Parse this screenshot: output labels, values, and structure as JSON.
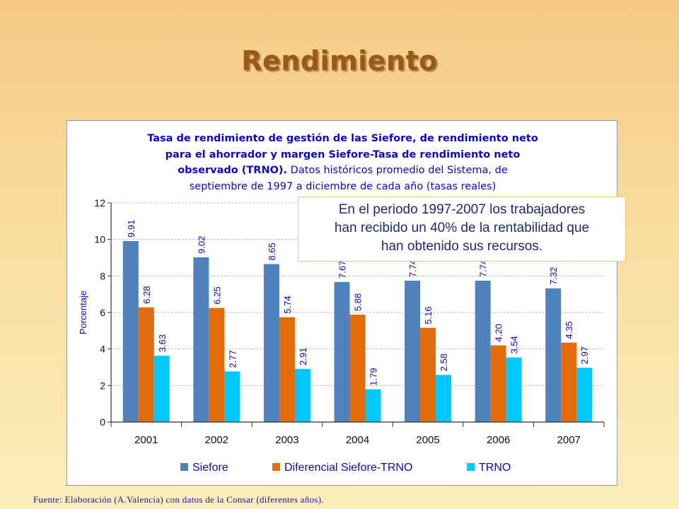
{
  "slide": {
    "title": "Rendimiento",
    "source_note": "Fuente: Elaboración (A.Valencia) con datos de la Consar (diferentes años)."
  },
  "callout": {
    "text_line1": "En el periodo 1997-2007 los trabajadores",
    "text_line2": "han recibido un 40% de la rentabilidad que",
    "text_line3": "han obtenido sus recursos."
  },
  "chart_data": {
    "type": "bar",
    "title_line1": "Tasa de rendimiento de gestión de las Siefore, de rendimiento neto",
    "title_line2": "para el ahorrador y margen Siefore-Tasa de rendimiento neto",
    "title_line3_bold": "observado (TRNO).",
    "title_line3_rest": " Datos históricos promedio del Sistema, de",
    "title_line4": "septiembre de 1997 a diciembre de cada año (tasas reales)",
    "xlabel": "",
    "ylabel": "Porcentaje",
    "ylim": [
      0,
      12
    ],
    "yticks": [
      "0",
      "2",
      "4",
      "6",
      "8",
      "10",
      "12"
    ],
    "grid": true,
    "legend_position": "bottom",
    "categories": [
      "2001",
      "2002",
      "2003",
      "2004",
      "2005",
      "2006",
      "2007"
    ],
    "series": [
      {
        "name": "Siefore",
        "color": "#4f81bd",
        "values": [
          9.91,
          9.02,
          8.65,
          7.67,
          7.74,
          7.74,
          7.32
        ],
        "labels": [
          "9.91",
          "9.02",
          "8.65",
          "7.67",
          "7.74",
          "7.74",
          "7.32"
        ]
      },
      {
        "name": "Diferencial Siefore-TRNO",
        "color": "#e36c0a",
        "values": [
          6.28,
          6.25,
          5.74,
          5.88,
          5.16,
          4.2,
          4.35
        ],
        "labels": [
          "6.28",
          "6.25",
          "5.74",
          "5.88",
          "5.16",
          "4.20",
          "4.35"
        ]
      },
      {
        "name": "TRNO",
        "color": "#00c8ff",
        "values": [
          3.63,
          2.77,
          2.91,
          1.79,
          2.58,
          3.54,
          2.97
        ],
        "labels": [
          "3.63",
          "2.77",
          "2.91",
          "1.79",
          "2.58",
          "3.54",
          "2.97"
        ]
      }
    ]
  }
}
